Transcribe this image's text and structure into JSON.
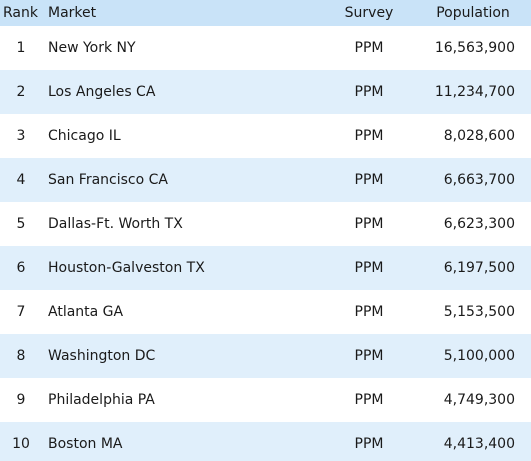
{
  "columns": {
    "rank": "Rank",
    "market": "Market",
    "survey": "Survey",
    "population": "Population"
  },
  "rows": [
    {
      "rank": "1",
      "market": "New York NY",
      "survey": "PPM",
      "population": "16,563,900"
    },
    {
      "rank": "2",
      "market": "Los Angeles CA",
      "survey": "PPM",
      "population": "11,234,700"
    },
    {
      "rank": "3",
      "market": "Chicago IL",
      "survey": "PPM",
      "population": "8,028,600"
    },
    {
      "rank": "4",
      "market": "San Francisco CA",
      "survey": "PPM",
      "population": "6,663,700"
    },
    {
      "rank": "5",
      "market": "Dallas-Ft. Worth TX",
      "survey": "PPM",
      "population": "6,623,300"
    },
    {
      "rank": "6",
      "market": "Houston-Galveston TX",
      "survey": "PPM",
      "population": "6,197,500"
    },
    {
      "rank": "7",
      "market": "Atlanta GA",
      "survey": "PPM",
      "population": "5,153,500"
    },
    {
      "rank": "8",
      "market": "Washington DC",
      "survey": "PPM",
      "population": "5,100,000"
    },
    {
      "rank": "9",
      "market": "Philadelphia PA",
      "survey": "PPM",
      "population": "4,749,300"
    },
    {
      "rank": "10",
      "market": "Boston MA",
      "survey": "PPM",
      "population": "4,413,400"
    }
  ],
  "colors": {
    "header_bg": "#c9e3f8",
    "alt_row_bg": "#e0effb",
    "row_bg": "#ffffff"
  }
}
